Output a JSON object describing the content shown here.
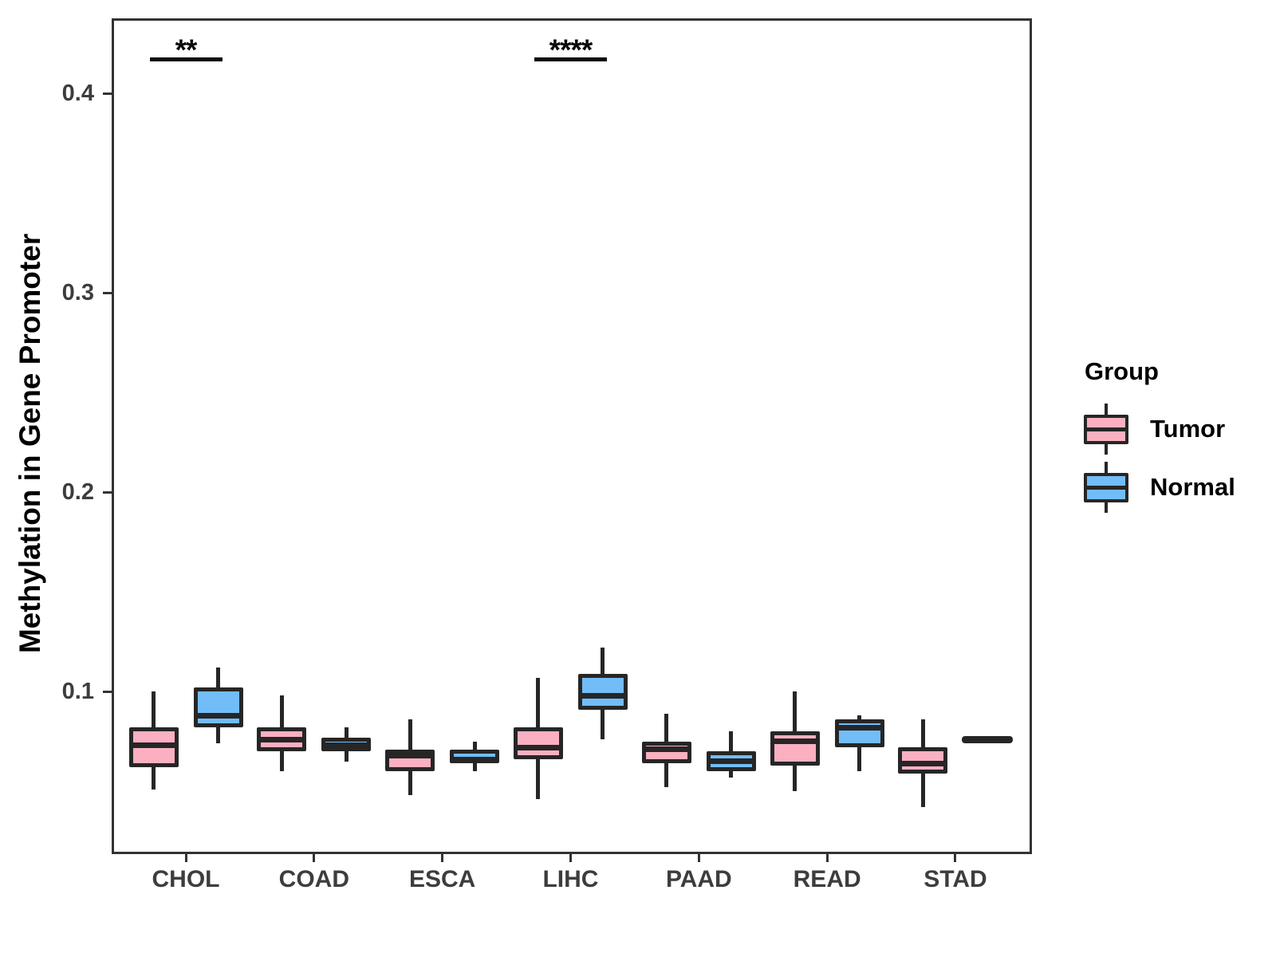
{
  "legend": {
    "title": "Group",
    "items": [
      {
        "label": "Tumor",
        "color": "#FBB0C1"
      },
      {
        "label": "Normal",
        "color": "#72BDF7"
      }
    ]
  },
  "chart_data": {
    "type": "boxplot",
    "title": "",
    "xlabel": "",
    "ylabel": "Methylation in Gene Promoter",
    "categories": [
      "CHOL",
      "COAD",
      "ESCA",
      "LIHC",
      "PAAD",
      "READ",
      "STAD"
    ],
    "ylim": [
      0.0184,
      0.4376
    ],
    "y_ticks": [
      {
        "value": 0.1,
        "label": "0.1"
      },
      {
        "value": 0.2,
        "label": "0.2"
      },
      {
        "value": 0.3,
        "label": "0.3"
      },
      {
        "value": 0.4,
        "label": "0.4"
      }
    ],
    "grid": false,
    "legend_position": "right",
    "series": [
      {
        "name": "Tumor",
        "color": "#FBB0C1",
        "boxes": [
          {
            "category": "CHOL",
            "low": 0.051,
            "q1": 0.062,
            "median": 0.073,
            "q3": 0.082,
            "high": 0.1
          },
          {
            "category": "COAD",
            "low": 0.06,
            "q1": 0.07,
            "median": 0.076,
            "q3": 0.082,
            "high": 0.098
          },
          {
            "category": "ESCA",
            "low": 0.048,
            "q1": 0.06,
            "median": 0.068,
            "q3": 0.071,
            "high": 0.086
          },
          {
            "category": "LIHC",
            "low": 0.046,
            "q1": 0.066,
            "median": 0.072,
            "q3": 0.082,
            "high": 0.107
          },
          {
            "category": "PAAD",
            "low": 0.052,
            "q1": 0.064,
            "median": 0.071,
            "q3": 0.075,
            "high": 0.089
          },
          {
            "category": "READ",
            "low": 0.05,
            "q1": 0.063,
            "median": 0.075,
            "q3": 0.08,
            "high": 0.1
          },
          {
            "category": "STAD",
            "low": 0.042,
            "q1": 0.059,
            "median": 0.064,
            "q3": 0.072,
            "high": 0.086
          }
        ]
      },
      {
        "name": "Normal",
        "color": "#72BDF7",
        "boxes": [
          {
            "category": "CHOL",
            "low": 0.074,
            "q1": 0.082,
            "median": 0.088,
            "q3": 0.102,
            "high": 0.112
          },
          {
            "category": "COAD",
            "low": 0.065,
            "q1": 0.07,
            "median": 0.073,
            "q3": 0.077,
            "high": 0.082
          },
          {
            "category": "ESCA",
            "low": 0.06,
            "q1": 0.064,
            "median": 0.066,
            "q3": 0.071,
            "high": 0.075
          },
          {
            "category": "LIHC",
            "low": 0.076,
            "q1": 0.091,
            "median": 0.098,
            "q3": 0.109,
            "high": 0.122
          },
          {
            "category": "PAAD",
            "low": 0.057,
            "q1": 0.06,
            "median": 0.065,
            "q3": 0.07,
            "high": 0.08
          },
          {
            "category": "READ",
            "low": 0.06,
            "q1": 0.072,
            "median": 0.082,
            "q3": 0.086,
            "high": 0.088
          },
          {
            "category": "STAD",
            "low": 0.076,
            "q1": 0.076,
            "median": 0.076,
            "q3": 0.076,
            "high": 0.076,
            "flat": true
          }
        ]
      }
    ],
    "significance": [
      {
        "category": "CHOL",
        "label": "**"
      },
      {
        "category": "LIHC",
        "label": "****"
      }
    ],
    "box_border_color": "#262626",
    "axis_color": "#333333"
  }
}
